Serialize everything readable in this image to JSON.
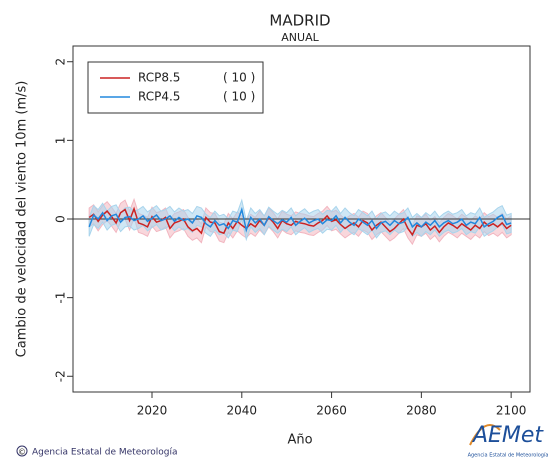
{
  "chart_data": {
    "type": "line",
    "title": "MADRID",
    "subtitle": "ANUAL",
    "ylabel": "Cambio de velocidad del viento 10m (m/s)",
    "xlabel": "Año",
    "x": [
      2006,
      2007,
      2008,
      2009,
      2010,
      2011,
      2012,
      2013,
      2014,
      2015,
      2016,
      2017,
      2018,
      2019,
      2020,
      2021,
      2022,
      2023,
      2024,
      2025,
      2026,
      2027,
      2028,
      2029,
      2030,
      2031,
      2032,
      2033,
      2034,
      2035,
      2036,
      2037,
      2038,
      2039,
      2040,
      2041,
      2042,
      2043,
      2044,
      2045,
      2046,
      2047,
      2048,
      2049,
      2050,
      2051,
      2052,
      2053,
      2054,
      2055,
      2056,
      2057,
      2058,
      2059,
      2060,
      2061,
      2062,
      2063,
      2064,
      2065,
      2066,
      2067,
      2068,
      2069,
      2070,
      2071,
      2072,
      2073,
      2074,
      2075,
      2076,
      2077,
      2078,
      2079,
      2080,
      2081,
      2082,
      2083,
      2084,
      2085,
      2086,
      2087,
      2088,
      2089,
      2090,
      2091,
      2092,
      2093,
      2094,
      2095,
      2096,
      2097,
      2098,
      2099,
      2100
    ],
    "series": [
      {
        "name": "RCP8.5",
        "count_label": "( 10 )",
        "color": "#cc2222",
        "band_color": "#f2b6c0",
        "spread": 0.12,
        "values": [
          0.02,
          0.06,
          -0.03,
          0.05,
          0.1,
          0.03,
          -0.05,
          0.08,
          0.12,
          -0.02,
          0.13,
          -0.05,
          -0.07,
          -0.1,
          0.03,
          -0.04,
          -0.02,
          0.02,
          -0.12,
          -0.05,
          -0.03,
          0.0,
          -0.1,
          -0.15,
          -0.12,
          -0.18,
          0.02,
          -0.04,
          -0.05,
          -0.16,
          -0.18,
          -0.05,
          -0.12,
          -0.03,
          -0.08,
          -0.12,
          -0.06,
          -0.1,
          -0.02,
          -0.08,
          0.02,
          -0.04,
          -0.12,
          -0.02,
          -0.06,
          -0.08,
          -0.03,
          -0.05,
          -0.06,
          -0.08,
          -0.09,
          -0.05,
          -0.02,
          0.04,
          -0.03,
          -0.01,
          -0.07,
          -0.12,
          -0.08,
          -0.05,
          -0.1,
          -0.02,
          -0.05,
          -0.14,
          -0.08,
          -0.04,
          -0.1,
          -0.16,
          -0.12,
          -0.06,
          0.0,
          -0.12,
          -0.2,
          -0.08,
          -0.1,
          -0.06,
          -0.14,
          -0.09,
          -0.17,
          -0.1,
          -0.05,
          -0.08,
          -0.12,
          -0.06,
          -0.1,
          -0.14,
          -0.08,
          -0.12,
          -0.04,
          -0.09,
          -0.06,
          -0.1,
          -0.05,
          -0.12,
          -0.08
        ]
      },
      {
        "name": "RCP4.5",
        "count_label": "( 10 )",
        "color": "#2288dd",
        "band_color": "#a8d4ec",
        "spread": 0.12,
        "values": [
          -0.1,
          0.05,
          0.0,
          0.08,
          -0.02,
          0.04,
          0.06,
          -0.04,
          0.02,
          0.03,
          -0.02,
          0.0,
          0.04,
          -0.03,
          0.01,
          0.05,
          -0.02,
          0.0,
          0.04,
          -0.03,
          0.02,
          -0.02,
          0.0,
          -0.05,
          0.04,
          0.02,
          -0.06,
          -0.1,
          -0.02,
          -0.08,
          -0.06,
          -0.12,
          -0.02,
          -0.04,
          0.12,
          -0.14,
          0.02,
          -0.05,
          0.0,
          -0.08,
          0.03,
          -0.02,
          -0.06,
          -0.01,
          -0.04,
          0.02,
          -0.08,
          -0.03,
          0.01,
          -0.05,
          -0.02,
          0.0,
          -0.06,
          -0.01,
          -0.02,
          0.04,
          -0.05,
          0.02,
          -0.04,
          -0.08,
          0.0,
          -0.04,
          -0.08,
          -0.02,
          -0.12,
          -0.05,
          -0.03,
          -0.08,
          -0.02,
          -0.06,
          -0.04,
          0.02,
          -0.1,
          -0.05,
          -0.1,
          -0.04,
          -0.08,
          -0.02,
          -0.1,
          -0.05,
          -0.02,
          -0.06,
          -0.04,
          0.0,
          -0.08,
          -0.04,
          -0.06,
          0.02,
          -0.1,
          -0.06,
          -0.03,
          0.02,
          0.05,
          -0.07,
          -0.05
        ]
      }
    ],
    "xlim": [
      2002.4,
      2104.2
    ],
    "xticks": [
      2020,
      2040,
      2060,
      2080,
      2100
    ],
    "ylim": [
      -2.2,
      2.2
    ],
    "yticks": [
      -2,
      -1,
      0,
      1,
      2
    ],
    "zero_line": true,
    "legend": "top-left",
    "footer": {
      "copyright": "©",
      "agency": "Agencia Estatal de Meteorología",
      "logo": "AEMet",
      "logo_caption": "Agencia Estatal de Meteorología"
    }
  }
}
